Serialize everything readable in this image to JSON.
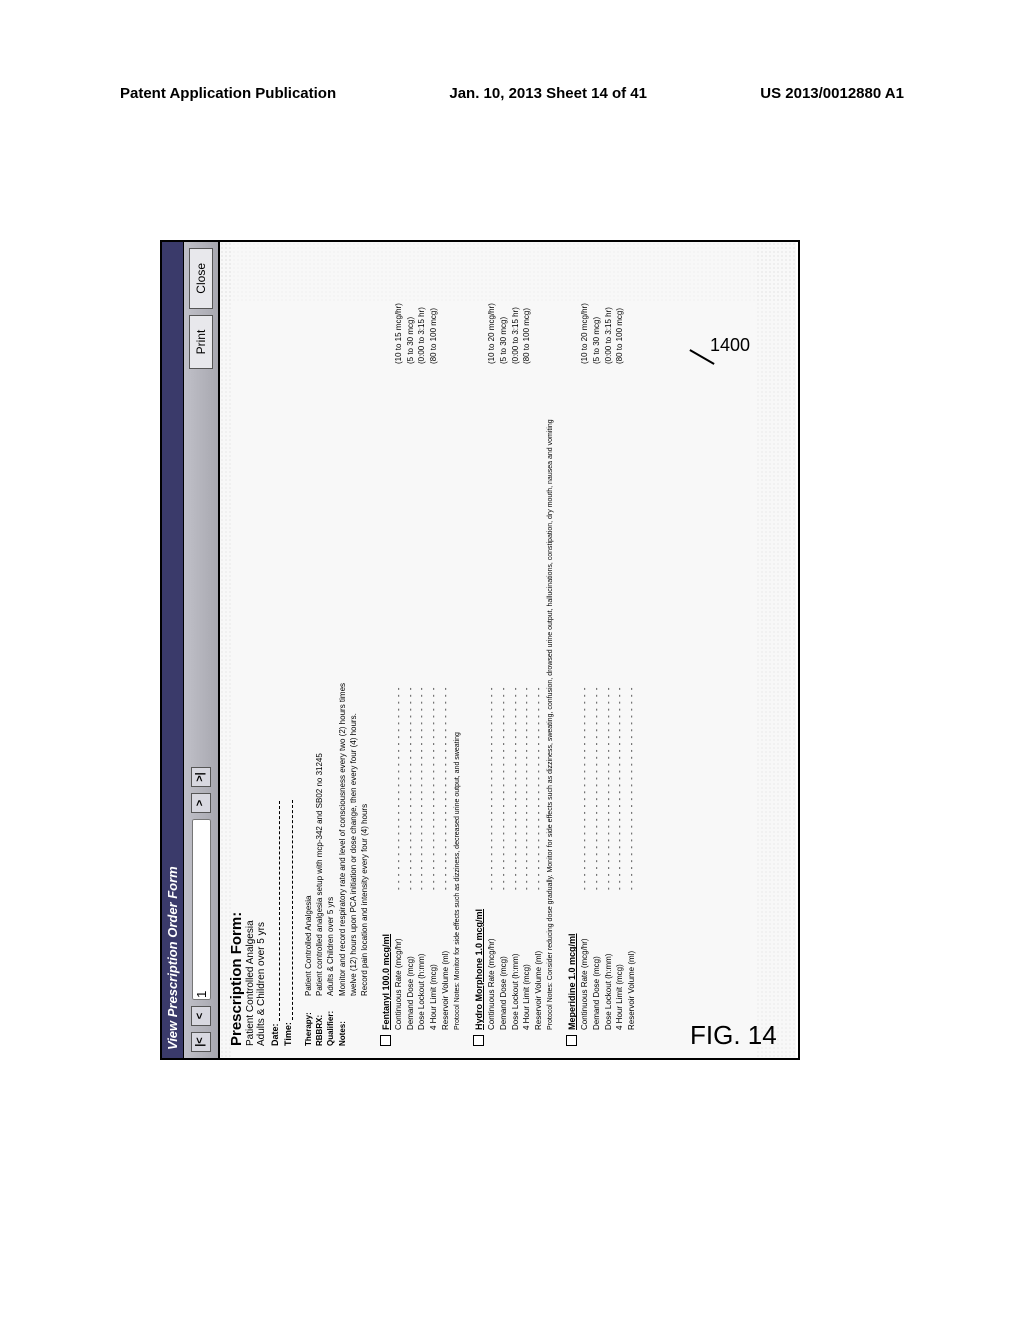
{
  "header": {
    "left": "Patent Application Publication",
    "center": "Jan. 10, 2013  Sheet 14 of 41",
    "right": "US 2013/0012880 A1"
  },
  "callout": {
    "number": "1400"
  },
  "figure_label": "FIG. 14",
  "window": {
    "title": "View Prescription Order Form",
    "page_current": "1",
    "page_nav": {
      "first": "|<",
      "prev": "<",
      "next": ">",
      "last": ">|"
    },
    "print": "Print",
    "close": "Close",
    "scroll_up": "▲",
    "scroll_down": "▼"
  },
  "form": {
    "title": "Prescription Form:",
    "sub1": "Patient Controlled Analgesia",
    "sub2": "Adults & Children over 5 yrs",
    "date_label": "Date:",
    "time_label": "Time:"
  },
  "notes": {
    "therapy_label": "Therapy:",
    "therapy_val": "Patient Controlled Analgesia",
    "rbbrx_label": "RBBRX:",
    "rbbrx_val": "Patient controlled analgesia setup with mcp-342 and SB02 no 31245",
    "qualifier_label": "Qualifier:",
    "qualifier_val": "Adults & Children over 5 yrs",
    "notes_label": "Notes:",
    "notes_line1": "Monitor and record respiratory rate and level of consciousness every two (2) hours times",
    "notes_line2": "twelve (12) hours upon PCA initiation or dose change, then every four (4) hours.",
    "notes_line3": "Record pain location and intensity every four (4) hours"
  },
  "drugs": [
    {
      "title": "Fentanyl 100.0 mcg/ml",
      "rows": [
        {
          "label": "Continuous Rate (mcg/hr)",
          "val": "(10 to 15 mcg/hr)"
        },
        {
          "label": "Demand Dose (mcg)",
          "val": "(5 to 30 mcg)"
        },
        {
          "label": "Dose Lockout (h:mm)",
          "val": "(0:00 to 3:15 hr)"
        },
        {
          "label": "4 Hour Limit (mcg)",
          "val": "(80 to 100 mcg)"
        },
        {
          "label": "Reservoir Volume (ml)",
          "val": " "
        }
      ],
      "protocol": "Protocol Notes: Monitor for side effects such as dizziness, decreased urine output, and sweating"
    },
    {
      "title": "Hydro Morphone 1.0 mcg/ml",
      "rows": [
        {
          "label": "Continuous Rate (mcg/hr)",
          "val": "(10 to 20 mcg/hr)"
        },
        {
          "label": "Demand Dose (mcg)",
          "val": "(5 to 30 mcg)"
        },
        {
          "label": "Dose Lockout (h:mm)",
          "val": "(0:00 to 3:15 hr)"
        },
        {
          "label": "4 Hour Limit (mcg)",
          "val": "(80 to 100 mcg)"
        },
        {
          "label": "Reservoir Volume (ml)",
          "val": " "
        }
      ],
      "protocol": "Protocol Notes: Consider reducing dose gradually. Monitor for side effects such as dizziness, sweating, confusion, drowsed urine output, hallucinations, constipation, dry mouth, nausea and vomiting"
    },
    {
      "title": "Meperidine 1.0 mcg/ml",
      "rows": [
        {
          "label": "Continuous Rate (mcg/hr)",
          "val": "(10 to 20 mcg/hr)"
        },
        {
          "label": "Demand Dose (mcg)",
          "val": "(5 to 30 mcg)"
        },
        {
          "label": "Dose Lockout (h:mm)",
          "val": "(0:00 to 3:15 hr)"
        },
        {
          "label": "4 Hour Limit (mcg)",
          "val": "(80 to 100 mcg)"
        },
        {
          "label": "Reservoir Volume (ml)",
          "val": " "
        }
      ],
      "protocol": ""
    }
  ],
  "style": {
    "bg": "#ffffff",
    "titlebar_bg": "#3a3a6a",
    "titlebar_fg": "#ffffff",
    "toolbar_bg": "#b8b8c0"
  }
}
